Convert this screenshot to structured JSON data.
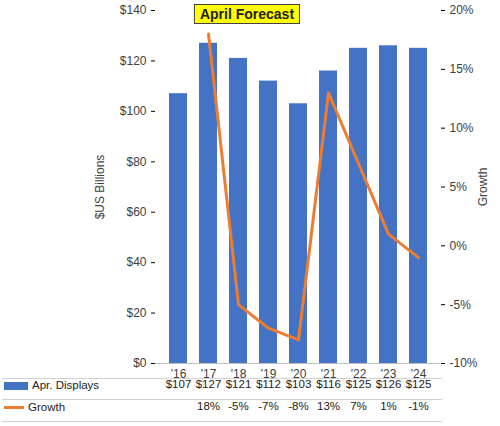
{
  "chart_data": {
    "type": "bar",
    "title": "April Forecast",
    "categories": [
      "'16",
      "'17",
      "'18",
      "'19",
      "'20",
      "'21",
      "'22",
      "'23",
      "'24"
    ],
    "ylabel": "$US Billions",
    "y2label": "Growth",
    "ylim": [
      0,
      140
    ],
    "yticks": [
      {
        "value": 0,
        "label": "$0"
      },
      {
        "value": 20,
        "label": "$20"
      },
      {
        "value": 40,
        "label": "$40"
      },
      {
        "value": 60,
        "label": "$60"
      },
      {
        "value": 80,
        "label": "$80"
      },
      {
        "value": 100,
        "label": "$100"
      },
      {
        "value": 120,
        "label": "$120"
      },
      {
        "value": 140,
        "label": "$140"
      }
    ],
    "y2lim": [
      -10,
      20
    ],
    "y2ticks": [
      {
        "value": -10,
        "label": "-10%"
      },
      {
        "value": -5,
        "label": "-5%"
      },
      {
        "value": 0,
        "label": "0%"
      },
      {
        "value": 5,
        "label": "5%"
      },
      {
        "value": 10,
        "label": "10%"
      },
      {
        "value": 15,
        "label": "15%"
      },
      {
        "value": 20,
        "label": "20%"
      }
    ],
    "data_labels": true,
    "series": [
      {
        "name": "Apr. Displays",
        "type": "bar",
        "color": "#4472c4",
        "values": [
          107,
          127,
          121,
          112,
          103,
          116,
          125,
          126,
          125
        ],
        "value_labels": [
          "$107",
          "$127",
          "$121",
          "$112",
          "$103",
          "$116",
          "$125",
          "$126",
          "$125"
        ]
      },
      {
        "name": "Growth",
        "type": "line",
        "axis": "y2",
        "color": "#ed7d31",
        "values": [
          null,
          18,
          -5,
          -7,
          -8,
          13,
          7,
          1,
          -1
        ],
        "value_labels": [
          null,
          "18%",
          "-5%",
          "-7%",
          "-8%",
          "13%",
          "7%",
          "1%",
          "-1%"
        ]
      }
    ]
  }
}
